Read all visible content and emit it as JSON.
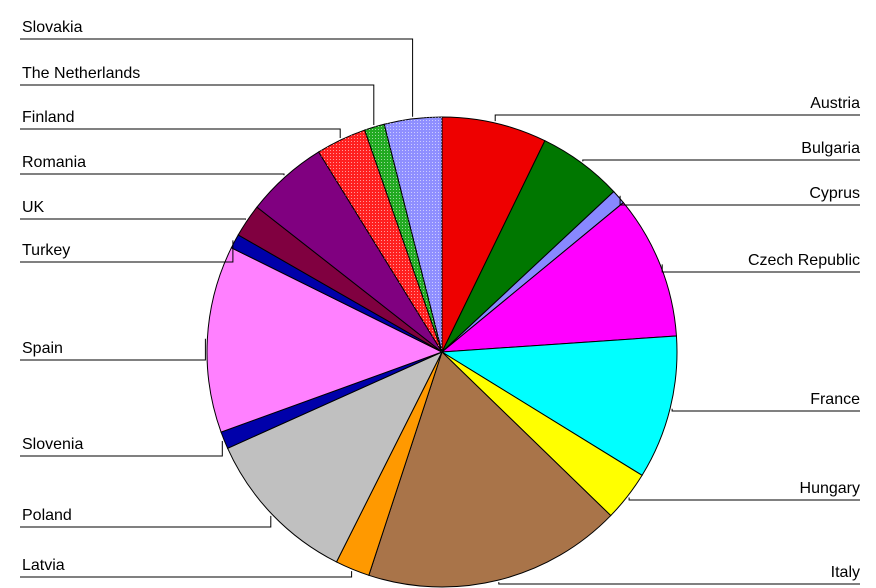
{
  "chart_data": {
    "type": "pie",
    "title": "",
    "legend": "none",
    "series": [
      {
        "label": "Austria",
        "value": 7.3,
        "color": "#ee0000",
        "pattern": false
      },
      {
        "label": "Bulgaria",
        "value": 5.9,
        "color": "#007700",
        "pattern": false
      },
      {
        "label": "Cyprus",
        "value": 1.0,
        "color": "#8888ff",
        "pattern": false
      },
      {
        "label": "Czech Republic",
        "value": 10.0,
        "color": "#ff00ff",
        "pattern": false
      },
      {
        "label": "France",
        "value": 10.0,
        "color": "#00ffff",
        "pattern": false
      },
      {
        "label": "Hungary",
        "value": 3.5,
        "color": "#ffff00",
        "pattern": false
      },
      {
        "label": "Italy",
        "value": 18.0,
        "color": "#a97449",
        "pattern": false
      },
      {
        "label": "Latvia",
        "value": 2.4,
        "color": "#ff9900",
        "pattern": false
      },
      {
        "label": "Poland",
        "value": 11.0,
        "color": "#c0c0c0",
        "pattern": false
      },
      {
        "label": "Slovenia",
        "value": 1.2,
        "color": "#0000aa",
        "pattern": false
      },
      {
        "label": "Spain",
        "value": 13.0,
        "color": "#ff80ff",
        "pattern": false
      },
      {
        "label": "Turkey",
        "value": 1.0,
        "color": "#0000aa",
        "pattern": false
      },
      {
        "label": "UK",
        "value": 2.3,
        "color": "#800040",
        "pattern": false
      },
      {
        "label": "Romania",
        "value": 5.7,
        "color": "#800080",
        "pattern": false
      },
      {
        "label": "Finland",
        "value": 3.5,
        "color": "#ff2020",
        "pattern": true
      },
      {
        "label": "The Netherlands",
        "value": 1.4,
        "color": "#22aa22",
        "pattern": true
      },
      {
        "label": "Slovakia",
        "value": 4.0,
        "color": "#8f8fff",
        "pattern": true
      }
    ]
  }
}
